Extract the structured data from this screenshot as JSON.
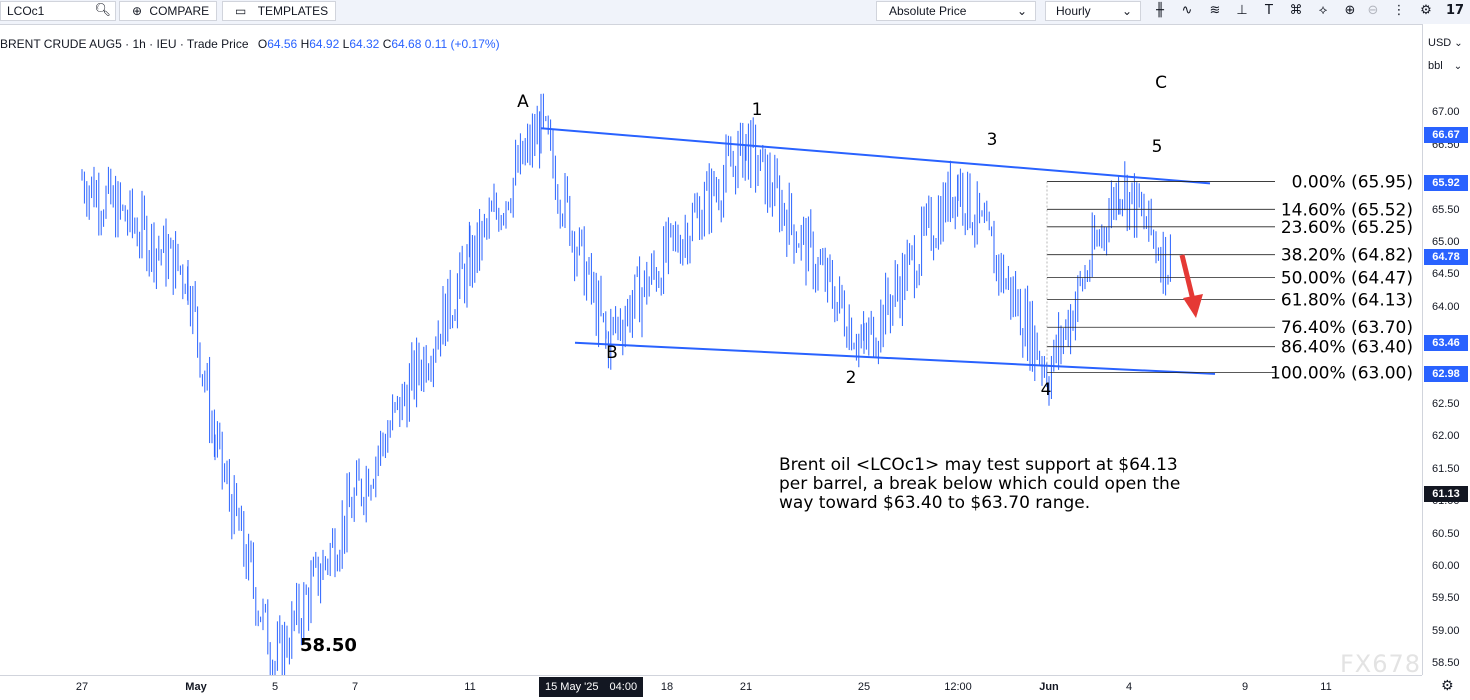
{
  "toolbar": {
    "symbol": "LCOc1",
    "compare_label": "COMPARE",
    "templates_label": "TEMPLATES",
    "price_mode": "Absolute Price",
    "interval": "Hourly"
  },
  "legend": {
    "name": "BRENT CRUDE AUG5 · 1h · IEU · Trade Price",
    "open_label": "O",
    "open": "64.56",
    "high_label": "H",
    "high": "64.92",
    "low_label": "L",
    "low": "64.32",
    "close_label": "C",
    "close": "64.68",
    "change": "0.11 (+0.17%)"
  },
  "axis": {
    "currency": "USD",
    "unit": "bbl",
    "y_ticks": [
      "67.00",
      "66.50",
      "65.50",
      "65.00",
      "64.50",
      "64.00",
      "62.50",
      "62.00",
      "61.50",
      "61.00",
      "60.50",
      "60.00",
      "59.50",
      "59.00",
      "58.50"
    ],
    "x_ticks": [
      "27",
      "May",
      "5",
      "7",
      "11",
      "18",
      "21",
      "25",
      "12:00",
      "Jun",
      "4",
      "9",
      "11"
    ],
    "x_highlight_date": "15 May '25",
    "x_highlight_time": "04:00"
  },
  "price_tags": [
    {
      "label": "66.67",
      "color": "#2962ff"
    },
    {
      "label": "65.92",
      "color": "#2962ff"
    },
    {
      "label": "64.78",
      "color": "#2962ff"
    },
    {
      "label": "63.46",
      "color": "#2962ff"
    },
    {
      "label": "62.98",
      "color": "#2962ff"
    },
    {
      "label": "61.13",
      "color": "#131722"
    }
  ],
  "chart_data": {
    "type": "candlestick",
    "instrument": "BRENT CRUDE AUG5",
    "ylim": [
      58.4,
      67.6
    ],
    "price_path": [
      {
        "t": "27",
        "price": 66.0
      },
      {
        "t": "May",
        "price": 64.5
      },
      {
        "t": "May",
        "price": 61.9
      },
      {
        "t": "5",
        "price": 58.5
      },
      {
        "t": "11",
        "price": 64.7
      },
      {
        "t": "15 May",
        "price": 66.8
      },
      {
        "t": "15 May",
        "price": 63.5
      },
      {
        "t": "21",
        "price": 66.5
      },
      {
        "t": "25",
        "price": 63.4
      },
      {
        "t": "12:00",
        "price": 65.95
      },
      {
        "t": "Jun",
        "price": 63.0
      },
      {
        "t": "4",
        "price": 65.95
      },
      {
        "t": "4",
        "price": 64.6
      }
    ],
    "wave_labels": [
      "A",
      "B",
      "1",
      "2",
      "3",
      "4",
      "5",
      "C"
    ],
    "low_label": "58.50",
    "fibonacci": [
      {
        "label": "0.00% (65.95)",
        "price": 65.95
      },
      {
        "label": "14.60% (65.52)",
        "price": 65.52
      },
      {
        "label": "23.60% (65.25)",
        "price": 65.25
      },
      {
        "label": "38.20% (64.82)",
        "price": 64.82
      },
      {
        "label": "50.00% (64.47)",
        "price": 64.47
      },
      {
        "label": "61.80% (64.13)",
        "price": 64.13
      },
      {
        "label": "76.40% (63.70)",
        "price": 63.7
      },
      {
        "label": "86.40% (63.40)",
        "price": 63.4
      },
      {
        "label": "100.00% (63.00)",
        "price": 63.0
      }
    ],
    "channel_color": "#2962ff",
    "arrow_color": "#e53935"
  },
  "annotation": "Brent oil <LCOc1> may test support at $64.13\nper barrel, a break below which could open the\nway toward $63.40 to $63.70 range.",
  "watermark": "FX678"
}
